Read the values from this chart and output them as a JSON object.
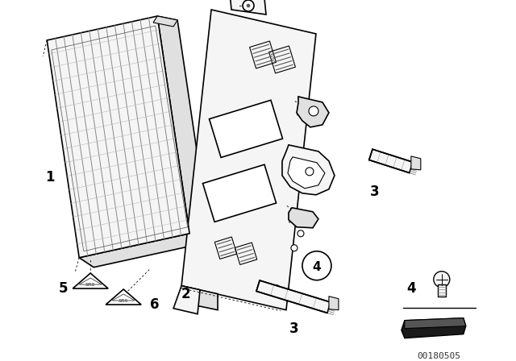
{
  "bg_color": "#ffffff",
  "line_color": "#000000",
  "watermark": "00180505",
  "fill_light": "#f5f5f5",
  "fill_mid": "#e0e0e0",
  "fill_dark": "#c8c8c8",
  "fill_black": "#1a1a1a"
}
